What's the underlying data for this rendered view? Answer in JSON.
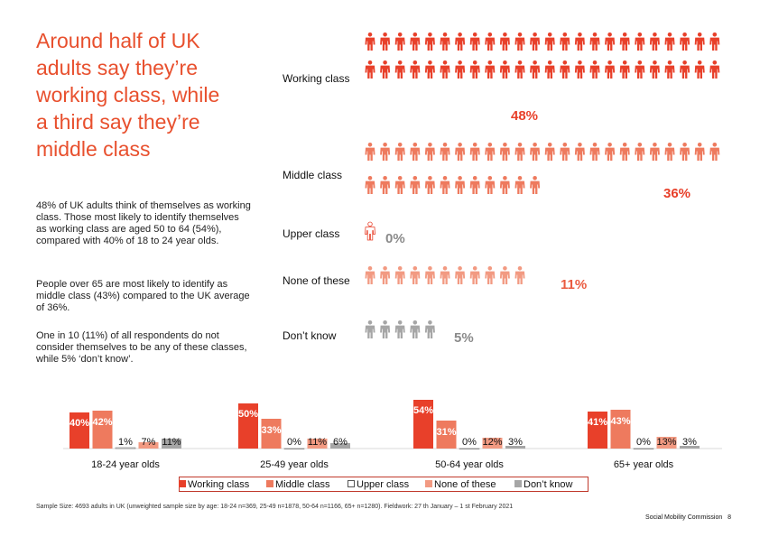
{
  "title": "Around half of UK\nadults say they’re\nworking class, while\na third say they’re\nmiddle class",
  "paragraphs": [
    "48% of UK adults think of themselves as working class. Those most likely to identify themselves as working class are aged 50 to 64 (54%), compared with 40% of 18 to 24 year olds.",
    "People over 65 are most likely to identify as middle class (43%) compared to the UK average of 36%.",
    "One in 10 (11%) of all respondents do not consider themselves to be any of these classes, while 5% ‘don’t know’."
  ],
  "colors": {
    "working": "#e8402a",
    "middle": "#ee7a5e",
    "upper_outline": "#e8402a",
    "none": "#f29a82",
    "dontknow": "#a6a6a6",
    "pct_red": "#e8402a",
    "pct_none": "#ea5b40",
    "pct_grey": "#8a8a8a"
  },
  "pictogram": {
    "rows": [
      {
        "label": "Working class",
        "value": 48,
        "pct": "48%",
        "icon": "person-icon"
      },
      {
        "label": "Middle class",
        "value": 36,
        "pct": "36%",
        "icon": "person-icon"
      },
      {
        "label": "Upper class",
        "value": 0,
        "pct": "0%",
        "icon": "person-outline-icon"
      },
      {
        "label": "None of these",
        "value": 11,
        "pct": "11%",
        "icon": "person-icon"
      },
      {
        "label": "Don’t know",
        "value": 5,
        "pct": "5%",
        "icon": "person-icon"
      }
    ]
  },
  "chart_data": {
    "type": "bar",
    "categories": [
      "18-24 year olds",
      "25-49 year olds",
      "50-64 year olds",
      "65+ year olds"
    ],
    "series": [
      {
        "name": "Working class",
        "values": [
          40,
          50,
          54,
          41
        ]
      },
      {
        "name": "Middle class",
        "values": [
          42,
          33,
          31,
          43
        ]
      },
      {
        "name": "Upper class",
        "values": [
          1,
          0,
          0,
          0
        ]
      },
      {
        "name": "None of these",
        "values": [
          7,
          11,
          12,
          13
        ]
      },
      {
        "name": "Don’t know",
        "values": [
          11,
          6,
          3,
          3
        ]
      }
    ],
    "data_labels": [
      [
        "40%",
        "42%",
        "1%",
        "7%",
        "11%"
      ],
      [
        "50%",
        "33%",
        "0%",
        "11%",
        "6%"
      ],
      [
        "54%",
        "31%",
        "0%",
        "12%",
        "3%"
      ],
      [
        "41%",
        "43%",
        "0%",
        "13%",
        "3%"
      ]
    ],
    "legend_position": "bottom"
  },
  "footnote": "Sample Size: 4693 adults in UK (unweighted sample size by age: 18-24 n=369, 25-49 n=1878, 50-64 n=1166, 65+ n=1280). Fieldwork: 27 th January – 1 st February 2021",
  "brand": "Social Mobility Commission",
  "page_number": "8"
}
